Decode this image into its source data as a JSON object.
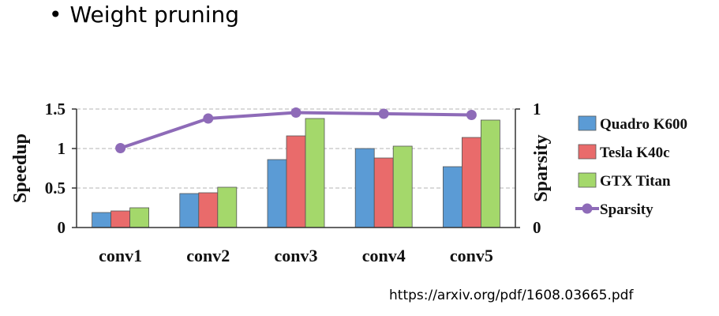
{
  "slide": {
    "bullet_symbol": "•",
    "title": "Weight pruning",
    "source_url": "https://arxiv.org/pdf/1608.03665.pdf"
  },
  "chart_data": {
    "type": "bar",
    "categories": [
      "conv1",
      "conv2",
      "conv3",
      "conv4",
      "conv5"
    ],
    "ylabel": "Speedup",
    "y2label": "Sparsity",
    "ylim": [
      0,
      1.5
    ],
    "y2lim": [
      0,
      1
    ],
    "yticks": [
      "0",
      "0.5",
      "1",
      "1.5"
    ],
    "y2ticks": [
      "0",
      "1"
    ],
    "grid": true,
    "legend_position": "right",
    "series": [
      {
        "name": "Quadro K600",
        "values": [
          0.19,
          0.43,
          0.86,
          1.0,
          0.77
        ],
        "color": "#5b9bd5"
      },
      {
        "name": "Tesla K40c",
        "values": [
          0.21,
          0.44,
          1.16,
          0.88,
          1.14
        ],
        "color": "#e96b6b"
      },
      {
        "name": "GTX Titan",
        "values": [
          0.25,
          0.51,
          1.38,
          1.03,
          1.36
        ],
        "color": "#a4d86b"
      }
    ],
    "line_series": {
      "name": "Sparsity",
      "values": [
        0.67,
        0.92,
        0.97,
        0.96,
        0.95
      ],
      "color": "#8e6bb8"
    }
  }
}
